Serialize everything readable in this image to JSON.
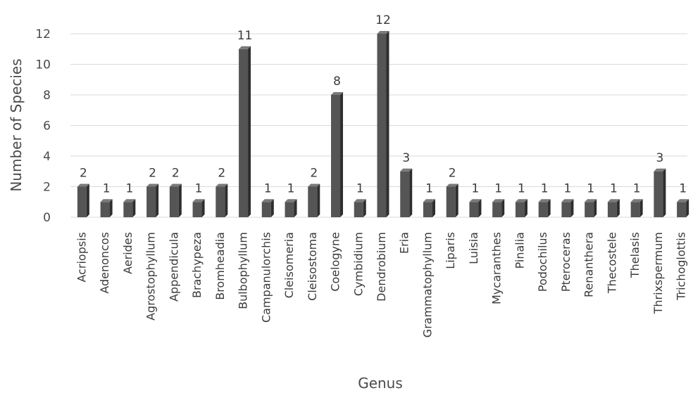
{
  "chart_data": {
    "type": "bar",
    "xlabel": "Genus",
    "ylabel": "Number of Species",
    "ylim": [
      0,
      12
    ],
    "yticks": [
      0,
      2,
      4,
      6,
      8,
      10,
      12
    ],
    "grid": true,
    "bar_color": "#555555",
    "categories": [
      "Acriopsis",
      "Adenoncos",
      "Aerides",
      "Agrostophyllum",
      "Appendicula",
      "Brachypeza",
      "Bromheadia",
      "Bulbophyllum",
      "Campanulorchis",
      "Cleisomeria",
      "Cleisostoma",
      "Coelogyne",
      "Cymbidium",
      "Dendrobium",
      "Eria",
      "Grammatophyllum",
      "Liparis",
      "Luisia",
      "Mycaranthes",
      "Pinalia",
      "Podochilus",
      "Pteroceras",
      "Renanthera",
      "Thecostele",
      "Thelasis",
      "Thrixspermum",
      "Trichoglottis"
    ],
    "values": [
      2,
      1,
      1,
      2,
      2,
      1,
      2,
      11,
      1,
      1,
      2,
      8,
      1,
      12,
      3,
      1,
      2,
      1,
      1,
      1,
      1,
      1,
      1,
      1,
      1,
      3,
      1
    ]
  }
}
